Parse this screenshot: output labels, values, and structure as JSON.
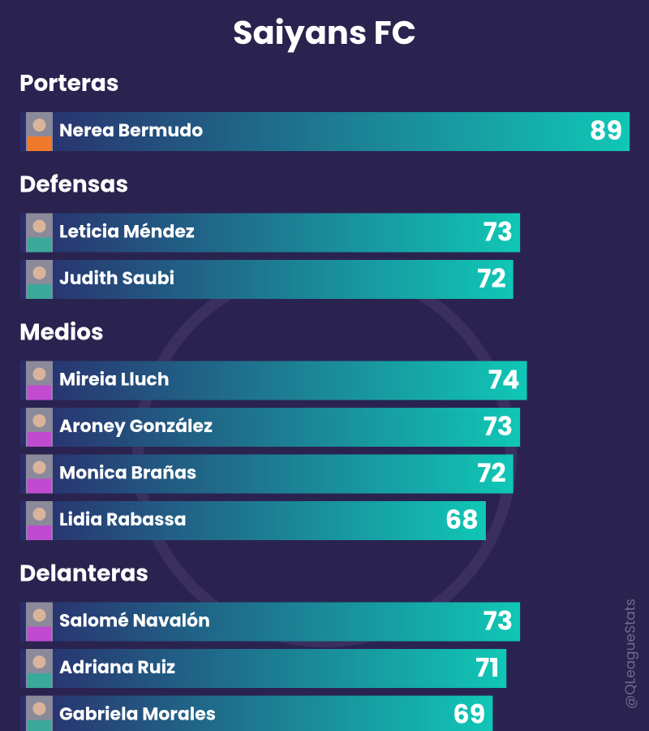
{
  "chart_data": {
    "type": "bar",
    "orientation": "horizontal",
    "title": "Saiyans FC",
    "groups": [
      {
        "name": "Porteras",
        "categories": [
          "Nerea Bermudo"
        ],
        "values": [
          89
        ]
      },
      {
        "name": "Defensas",
        "categories": [
          "Leticia Méndez",
          "Judith Saubi"
        ],
        "values": [
          73,
          72
        ]
      },
      {
        "name": "Medios",
        "categories": [
          "Mireia Lluch",
          "Aroney González",
          "Monica Brañas",
          "Lidia Rabassa"
        ],
        "values": [
          74,
          73,
          72,
          68
        ]
      },
      {
        "name": "Delanteras",
        "categories": [
          "Salomé Navalón",
          "Adriana Ruiz",
          "Gabriela Morales"
        ],
        "values": [
          73,
          71,
          69
        ]
      }
    ],
    "gradient": [
      "#2a2c6c",
      "#10c7b6"
    ],
    "watermark": "@QLeagueStats"
  }
}
